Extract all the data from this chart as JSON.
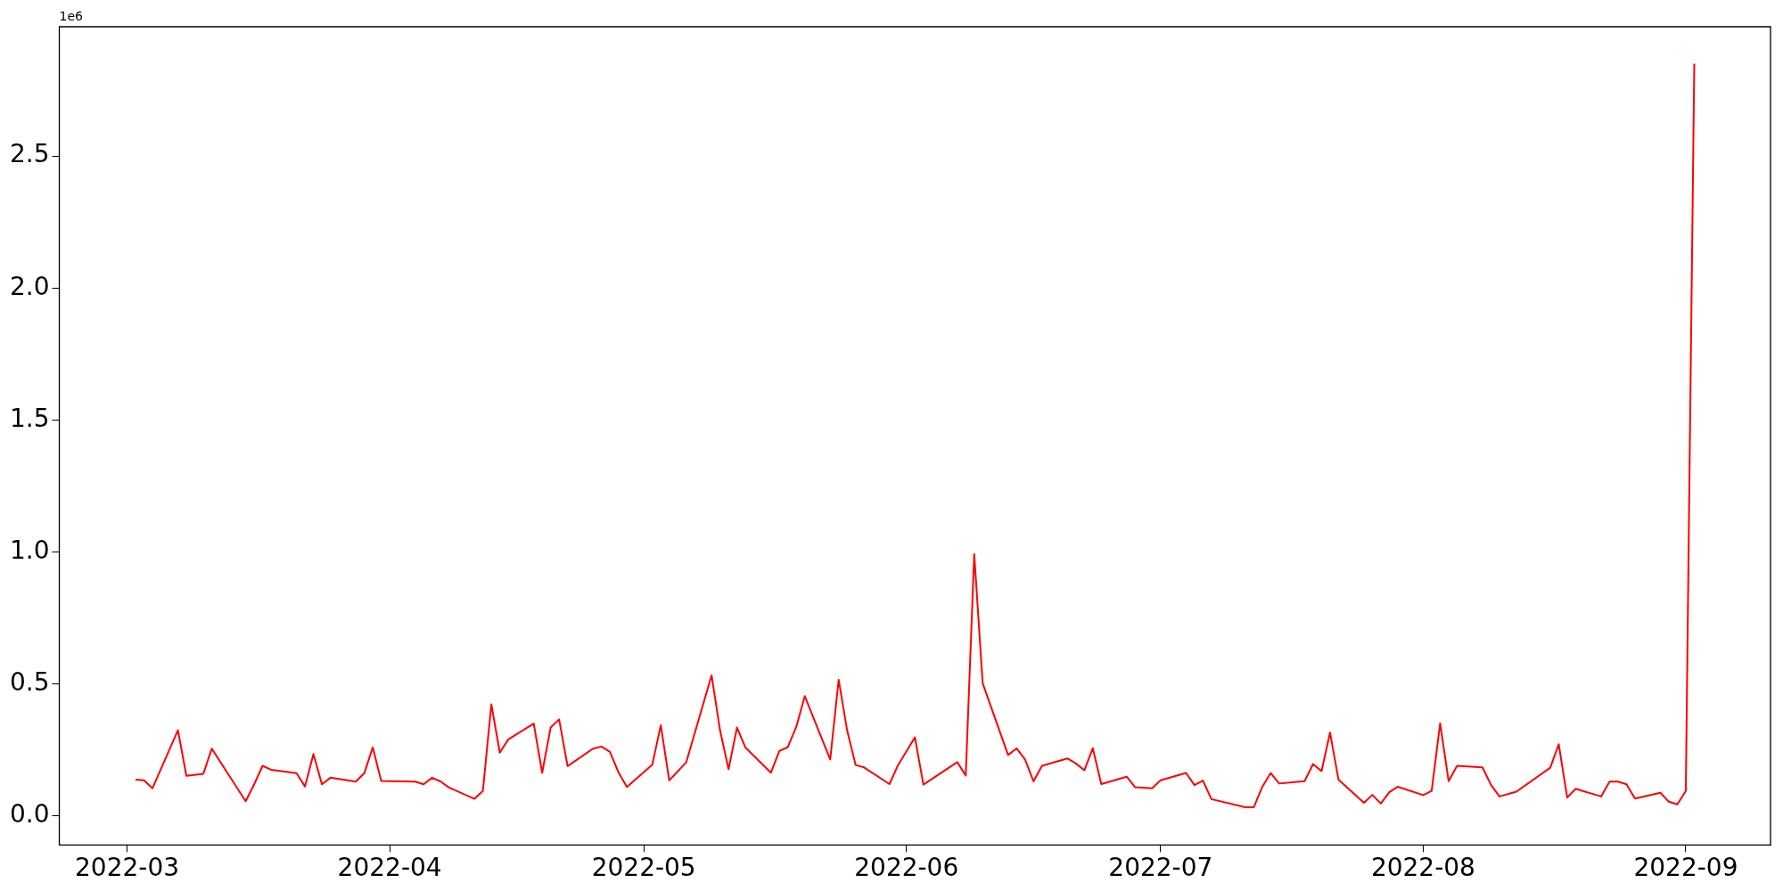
{
  "chart_data": {
    "type": "line",
    "annotations": [
      "1e6"
    ],
    "x": [
      "2022-03-02",
      "2022-03-03",
      "2022-03-04",
      "2022-03-07",
      "2022-03-08",
      "2022-03-10",
      "2022-03-11",
      "2022-03-15",
      "2022-03-16",
      "2022-03-17",
      "2022-03-18",
      "2022-03-21",
      "2022-03-22",
      "2022-03-23",
      "2022-03-24",
      "2022-03-25",
      "2022-03-28",
      "2022-03-29",
      "2022-03-30",
      "2022-03-31",
      "2022-04-04",
      "2022-04-05",
      "2022-04-06",
      "2022-04-07",
      "2022-04-08",
      "2022-04-11",
      "2022-04-12",
      "2022-04-13",
      "2022-04-14",
      "2022-04-15",
      "2022-04-18",
      "2022-04-19",
      "2022-04-20",
      "2022-04-21",
      "2022-04-22",
      "2022-04-25",
      "2022-04-26",
      "2022-04-27",
      "2022-04-28",
      "2022-04-29",
      "2022-05-02",
      "2022-05-03",
      "2022-05-04",
      "2022-05-06",
      "2022-05-09",
      "2022-05-10",
      "2022-05-11",
      "2022-05-12",
      "2022-05-13",
      "2022-05-16",
      "2022-05-17",
      "2022-05-18",
      "2022-05-19",
      "2022-05-20",
      "2022-05-23",
      "2022-05-24",
      "2022-05-25",
      "2022-05-26",
      "2022-05-27",
      "2022-05-30",
      "2022-05-31",
      "2022-06-02",
      "2022-06-03",
      "2022-06-07",
      "2022-06-08",
      "2022-06-09",
      "2022-06-10",
      "2022-06-13",
      "2022-06-14",
      "2022-06-15",
      "2022-06-16",
      "2022-06-17",
      "2022-06-20",
      "2022-06-21",
      "2022-06-22",
      "2022-06-23",
      "2022-06-24",
      "2022-06-27",
      "2022-06-28",
      "2022-06-30",
      "2022-07-01",
      "2022-07-04",
      "2022-07-05",
      "2022-07-06",
      "2022-07-07",
      "2022-07-11",
      "2022-07-12",
      "2022-07-13",
      "2022-07-14",
      "2022-07-15",
      "2022-07-18",
      "2022-07-19",
      "2022-07-20",
      "2022-07-21",
      "2022-07-22",
      "2022-07-25",
      "2022-07-26",
      "2022-07-27",
      "2022-07-28",
      "2022-07-29",
      "2022-08-01",
      "2022-08-02",
      "2022-08-03",
      "2022-08-04",
      "2022-08-05",
      "2022-08-08",
      "2022-08-09",
      "2022-08-10",
      "2022-08-12",
      "2022-08-16",
      "2022-08-17",
      "2022-08-18",
      "2022-08-19",
      "2022-08-22",
      "2022-08-23",
      "2022-08-24",
      "2022-08-25",
      "2022-08-26",
      "2022-08-29",
      "2022-08-30",
      "2022-08-31",
      "2022-09-01",
      "2022-09-02"
    ],
    "series": [
      {
        "color": "#ff0000",
        "values": [
          0.138,
          0.135,
          0.105,
          0.325,
          0.152,
          0.16,
          0.255,
          0.056,
          0.12,
          0.19,
          0.175,
          0.162,
          0.112,
          0.235,
          0.12,
          0.145,
          0.13,
          0.162,
          0.26,
          0.133,
          0.13,
          0.12,
          0.145,
          0.131,
          0.108,
          0.065,
          0.095,
          0.423,
          0.24,
          0.29,
          0.35,
          0.164,
          0.335,
          0.366,
          0.189,
          0.255,
          0.263,
          0.243,
          0.166,
          0.11,
          0.194,
          0.344,
          0.135,
          0.203,
          0.533,
          0.324,
          0.177,
          0.335,
          0.259,
          0.164,
          0.246,
          0.261,
          0.338,
          0.454,
          0.214,
          0.516,
          0.324,
          0.193,
          0.184,
          0.121,
          0.192,
          0.298,
          0.119,
          0.204,
          0.153,
          0.992,
          0.503,
          0.231,
          0.256,
          0.214,
          0.131,
          0.19,
          0.218,
          0.199,
          0.173,
          0.257,
          0.121,
          0.149,
          0.109,
          0.105,
          0.135,
          0.163,
          0.117,
          0.134,
          0.064,
          0.033,
          0.033,
          0.11,
          0.163,
          0.123,
          0.132,
          0.197,
          0.17,
          0.316,
          0.138,
          0.05,
          0.08,
          0.047,
          0.09,
          0.111,
          0.079,
          0.095,
          0.351,
          0.132,
          0.19,
          0.184,
          0.118,
          0.074,
          0.092,
          0.183,
          0.272,
          0.07,
          0.103,
          0.074,
          0.13,
          0.13,
          0.12,
          0.066,
          0.088,
          0.054,
          0.044,
          0.095,
          2.85
        ]
      }
    ],
    "xlim": [
      "2022-02-21",
      "2022-09-11"
    ],
    "xticks": [
      "2022-03",
      "2022-04",
      "2022-05",
      "2022-06",
      "2022-07",
      "2022-08",
      "2022-09"
    ],
    "ylim": [
      -0.11,
      2.99
    ],
    "yticks": [
      {
        "value": 0,
        "label": "0.0"
      },
      0.5,
      {
        "value": 1,
        "label": "1.0"
      },
      1.5,
      {
        "value": 2,
        "label": "2.0"
      },
      2.5
    ],
    "grid": false,
    "legend": false
  }
}
